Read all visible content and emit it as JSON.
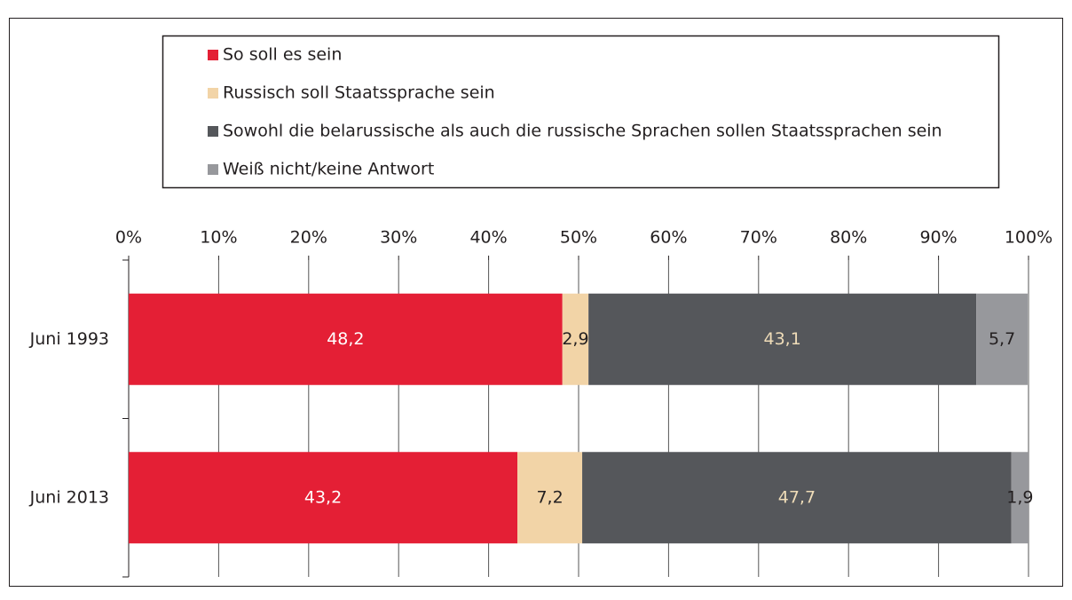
{
  "chart_data": {
    "type": "stacked-bar-horizontal",
    "categories": [
      "Juni 1993",
      "Juni 2013"
    ],
    "series": [
      {
        "name": "So soll es sein",
        "color": "#e41f35",
        "label_color": "#ffffff",
        "values": [
          48.2,
          43.2
        ],
        "value_labels": [
          "48,2",
          "43,2"
        ]
      },
      {
        "name": "Russisch soll Staatssprache sein",
        "color": "#f2d4a7",
        "label_color": "#231f20",
        "values": [
          2.9,
          7.2
        ],
        "value_labels": [
          "2,9",
          "7,2"
        ]
      },
      {
        "name": "Sowohl die belarussische als auch die russische Sprachen sollen Staatssprachen sein",
        "color": "#55575b",
        "label_color": "#efdcb8",
        "values": [
          43.1,
          47.7
        ],
        "value_labels": [
          "43,1",
          "47,7"
        ]
      },
      {
        "name": "Weiß nicht/keine Antwort",
        "color": "#97989c",
        "label_color": "#231f20",
        "values": [
          5.7,
          1.9
        ],
        "value_labels": [
          "5,7",
          "1,9"
        ]
      }
    ],
    "xlim": [
      0,
      100
    ],
    "xticks": [
      {
        "value": 0,
        "label": "0%"
      },
      {
        "value": 10,
        "label": "10%"
      },
      {
        "value": 20,
        "label": "20%"
      },
      {
        "value": 30,
        "label": "30%"
      },
      {
        "value": 40,
        "label": "40%"
      },
      {
        "value": 50,
        "label": "50%"
      },
      {
        "value": 60,
        "label": "60%"
      },
      {
        "value": 70,
        "label": "70%"
      },
      {
        "value": 80,
        "label": "80%"
      },
      {
        "value": 90,
        "label": "90%"
      },
      {
        "value": 100,
        "label": "100%"
      }
    ],
    "grid": true,
    "legend": "top"
  }
}
